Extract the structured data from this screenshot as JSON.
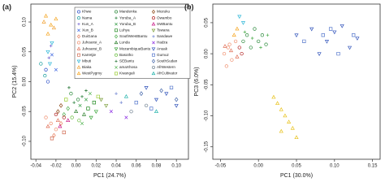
{
  "chart_data": [
    {
      "type": "scatter",
      "panel_label": "(a)",
      "x_label": "PC1 (24.7%)",
      "y_label": "PC2 (15.4%)",
      "xlim": [
        -0.045,
        0.112
      ],
      "ylim": [
        -0.13,
        0.13
      ],
      "xticks": [
        -0.04,
        -0.02,
        {
          "value": 0,
          "label": "0.00"
        },
        0.02,
        0.04,
        0.06,
        0.08,
        {
          "value": 0.1,
          "label": "0.10"
        }
      ],
      "yticks": [
        {
          "value": -0.1,
          "label": "-0.10"
        },
        -0.05,
        {
          "value": 0,
          "label": "0.00"
        },
        0.05,
        {
          "value": 0.1,
          "label": "0.10"
        }
      ],
      "series": [
        {
          "name": "Khwe",
          "color": "#2b4fc8",
          "marker": "circle",
          "x": [
            -0.03,
            -0.028
          ],
          "y": [
            0.02,
            0.0
          ]
        },
        {
          "name": "Nama",
          "color": "#1a9e9e",
          "marker": "circle",
          "x": [
            -0.035,
            -0.031
          ],
          "y": [
            0.03,
            0.01
          ]
        },
        {
          "name": "Kun_A",
          "color": "#6a5acd",
          "marker": "plus",
          "x": [
            -0.025,
            -0.027
          ],
          "y": [
            0.06,
            0.04
          ]
        },
        {
          "name": "Xun_B",
          "color": "#4169e1",
          "marker": "cross",
          "x": [
            -0.024,
            -0.02
          ],
          "y": [
            0.045,
            0.02
          ]
        },
        {
          "name": "DuiGana",
          "color": "#e88060",
          "marker": "diamond",
          "x": [
            -0.022,
            -0.015
          ],
          "y": [
            -0.09,
            -0.07
          ]
        },
        {
          "name": "Juhoansi_A",
          "color": "#f09070",
          "marker": "circle",
          "x": [
            -0.025,
            -0.02,
            -0.03
          ],
          "y": [
            -0.07,
            -0.08,
            -0.06
          ]
        },
        {
          "name": "Juhoansi_B",
          "color": "#e07058",
          "marker": "triangle",
          "x": [
            -0.018,
            -0.028
          ],
          "y": [
            -0.065,
            -0.075
          ]
        },
        {
          "name": "Karretjie",
          "color": "#d06a50",
          "marker": "square",
          "x": [
            -0.012,
            -0.024
          ],
          "y": [
            -0.085,
            -0.095
          ]
        },
        {
          "name": "Mbuti",
          "color": "#2fb7d8",
          "marker": "invtriangle",
          "x": [
            -0.028,
            -0.026,
            -0.024
          ],
          "y": [
            0.05,
            0.03,
            0.065
          ]
        },
        {
          "name": "Biaka",
          "color": "#f0a030",
          "marker": "triangle",
          "x": [
            -0.022,
            -0.032
          ],
          "y": [
            0.09,
            0.1
          ]
        },
        {
          "name": "WestPygmy",
          "color": "#f5a623",
          "marker": "triangle",
          "x": [
            -0.03,
            -0.025,
            -0.02,
            -0.028
          ],
          "y": [
            0.11,
            0.095,
            0.105,
            0.08
          ]
        },
        {
          "name": "Mandenka",
          "color": "#2e8b3e",
          "marker": "circle",
          "x": [
            -0.005,
            0.002
          ],
          "y": [
            -0.02,
            -0.03
          ]
        },
        {
          "name": "Yoruba_A",
          "color": "#1f7a33",
          "marker": "plus",
          "x": [
            -0.002,
            0.006
          ],
          "y": [
            -0.035,
            -0.025
          ]
        },
        {
          "name": "Yoruba_B",
          "color": "#3aa04a",
          "marker": "cross",
          "x": [
            0.004,
            0.01
          ],
          "y": [
            -0.04,
            -0.03
          ]
        },
        {
          "name": "Luhya",
          "color": "#228b22",
          "marker": "square",
          "x": [
            0.012,
            0.018
          ],
          "y": [
            -0.045,
            -0.035
          ]
        },
        {
          "name": "SouthWestBantu",
          "color": "#4cae4c",
          "marker": "diamond",
          "x": [
            -0.008,
            -0.012
          ],
          "y": [
            -0.045,
            -0.055
          ]
        },
        {
          "name": "Lunda",
          "color": "#2a7f2a",
          "marker": "triangle",
          "x": [
            0.0,
            0.008
          ],
          "y": [
            -0.05,
            -0.055
          ]
        },
        {
          "name": "MozambiqueBantu",
          "color": "#35a135",
          "marker": "invtriangle",
          "x": [
            0.015,
            0.02
          ],
          "y": [
            -0.06,
            -0.05
          ]
        },
        {
          "name": "Basotho",
          "color": "#6abf40",
          "marker": "circle",
          "x": [
            -0.004,
            0.003
          ],
          "y": [
            -0.06,
            -0.065
          ]
        },
        {
          "name": "SEBantu",
          "color": "#1c6e2c",
          "marker": "plus",
          "x": [
            0.01,
            -0.007
          ],
          "y": [
            -0.015,
            -0.01
          ]
        },
        {
          "name": "amaXhosa",
          "color": "#5cb85c",
          "marker": "cross",
          "x": [
            0.006,
            0.014
          ],
          "y": [
            -0.07,
            -0.02
          ]
        },
        {
          "name": "Kwangali",
          "color": "#9acd32",
          "marker": "square",
          "x": [
            -0.01,
            0.022
          ],
          "y": [
            -0.03,
            -0.025
          ]
        },
        {
          "name": "Mozuku",
          "color": "#8b4513",
          "marker": "diamond",
          "x": [
            -0.015,
            -0.018
          ],
          "y": [
            -0.04,
            -0.05
          ]
        },
        {
          "name": "Owambo",
          "color": "#b22222",
          "marker": "circle",
          "x": [
            -0.012,
            -0.02
          ],
          "y": [
            -0.06,
            -0.055
          ]
        },
        {
          "name": "SWBantu",
          "color": "#c71585",
          "marker": "triangle",
          "x": [
            -0.016,
            -0.008
          ],
          "y": [
            -0.075,
            -0.065
          ]
        },
        {
          "name": "Tswana",
          "color": "#7b9e3a",
          "marker": "invtriangle",
          "x": [
            0.025,
            0.03
          ],
          "y": [
            -0.03,
            -0.04
          ]
        },
        {
          "name": "Sandawe",
          "color": "#6a7fd0",
          "marker": "plus",
          "x": [
            0.04,
            0.045
          ],
          "y": [
            -0.02,
            -0.035
          ]
        },
        {
          "name": "Hadza",
          "color": "#8a2be2",
          "marker": "cross",
          "x": [
            0.035,
            0.05
          ],
          "y": [
            -0.05,
            -0.06
          ]
        },
        {
          "name": "Anuak",
          "color": "#3355bb",
          "marker": "invtriangle",
          "x": [
            0.07,
            0.08,
            0.09,
            0.1
          ],
          "y": [
            -0.01,
            -0.03,
            -0.02,
            -0.04
          ]
        },
        {
          "name": "Gumuz",
          "color": "#5577cc",
          "marker": "square",
          "x": [
            0.06,
            0.075,
            0.095
          ],
          "y": [
            -0.035,
            -0.045,
            -0.01
          ]
        },
        {
          "name": "SouthSudan",
          "color": "#4466aa",
          "marker": "diamond",
          "x": [
            0.065,
            0.085,
            0.1
          ],
          "y": [
            -0.02,
            -0.015,
            -0.03
          ]
        },
        {
          "name": "AfrWestern",
          "color": "#708090",
          "marker": "circle",
          "x": [
            0.055,
            0.07
          ],
          "y": [
            -0.05,
            -0.04
          ]
        },
        {
          "name": "AfrCultivator",
          "color": "#20b2aa",
          "marker": "triangle",
          "x": [
            0.05,
            0.08
          ],
          "y": [
            -0.025,
            -0.05
          ]
        }
      ]
    },
    {
      "type": "scatter",
      "panel_label": "(b)",
      "x_label": "PC1 (30.0%)",
      "y_label": "PC3 (6.0%)",
      "xlim": [
        -0.06,
        0.16
      ],
      "ylim": [
        -0.17,
        0.08
      ],
      "xticks": [
        -0.05,
        {
          "value": 0,
          "label": "0.00"
        },
        0.05,
        {
          "value": 0.1,
          "label": "0.10"
        },
        0.15
      ],
      "yticks": [
        -0.15,
        {
          "value": -0.1,
          "label": "-0.10"
        },
        -0.05,
        {
          "value": 0,
          "label": "0.00"
        },
        0.05
      ],
      "series": [
        {
          "color": "#3355bb",
          "marker": "invtriangle",
          "x": [
            0.05,
            0.07,
            0.09,
            0.1,
            0.12,
            0.13,
            0.08,
            0.11
          ],
          "y": [
            0.03,
            0.04,
            0.02,
            0.035,
            0.01,
            0.025,
            0.0,
            0.045
          ]
        },
        {
          "color": "#5577cc",
          "marker": "square",
          "x": [
            0.06,
            0.085,
            0.105,
            0.125,
            0.095
          ],
          "y": [
            0.02,
            0.03,
            0.0,
            0.03,
            0.04
          ]
        },
        {
          "color": "#f09070",
          "marker": "circle",
          "x": [
            -0.045,
            -0.04,
            -0.035,
            -0.03,
            -0.042,
            -0.038
          ],
          "y": [
            0.0,
            0.01,
            -0.01,
            0.02,
            -0.02,
            0.015
          ]
        },
        {
          "color": "#e07058",
          "marker": "triangle",
          "x": [
            -0.036,
            -0.028,
            -0.044
          ],
          "y": [
            0.005,
            -0.005,
            0.012
          ]
        },
        {
          "color": "#2e8b3e",
          "marker": "circle",
          "x": [
            -0.02,
            -0.015,
            -0.01,
            -0.005,
            0.0,
            0.005,
            0.01
          ],
          "y": [
            0.02,
            0.03,
            0.01,
            0.04,
            0.02,
            0.03,
            0.015
          ]
        },
        {
          "color": "#4cae4c",
          "marker": "plus",
          "x": [
            -0.018,
            -0.008,
            0.003,
            0.012
          ],
          "y": [
            0.035,
            0.025,
            0.01,
            0.03
          ]
        },
        {
          "color": "#2fb7d8",
          "marker": "invtriangle",
          "x": [
            -0.025,
            -0.02
          ],
          "y": [
            0.06,
            0.05
          ]
        },
        {
          "color": "#f5a623",
          "marker": "triangle",
          "x": [
            -0.032,
            -0.028
          ],
          "y": [
            0.03,
            0.04
          ]
        },
        {
          "color": "#e8c21c",
          "marker": "triangle",
          "x": [
            0.02,
            0.025,
            0.03,
            0.035,
            0.04,
            0.045,
            0.03,
            0.05
          ],
          "y": [
            -0.07,
            -0.08,
            -0.09,
            -0.1,
            -0.11,
            -0.12,
            -0.125,
            -0.135
          ]
        },
        {
          "color": "#b22222",
          "marker": "circle",
          "x": [
            -0.025,
            -0.022
          ],
          "y": [
            0.01,
            0.0
          ]
        }
      ]
    }
  ]
}
